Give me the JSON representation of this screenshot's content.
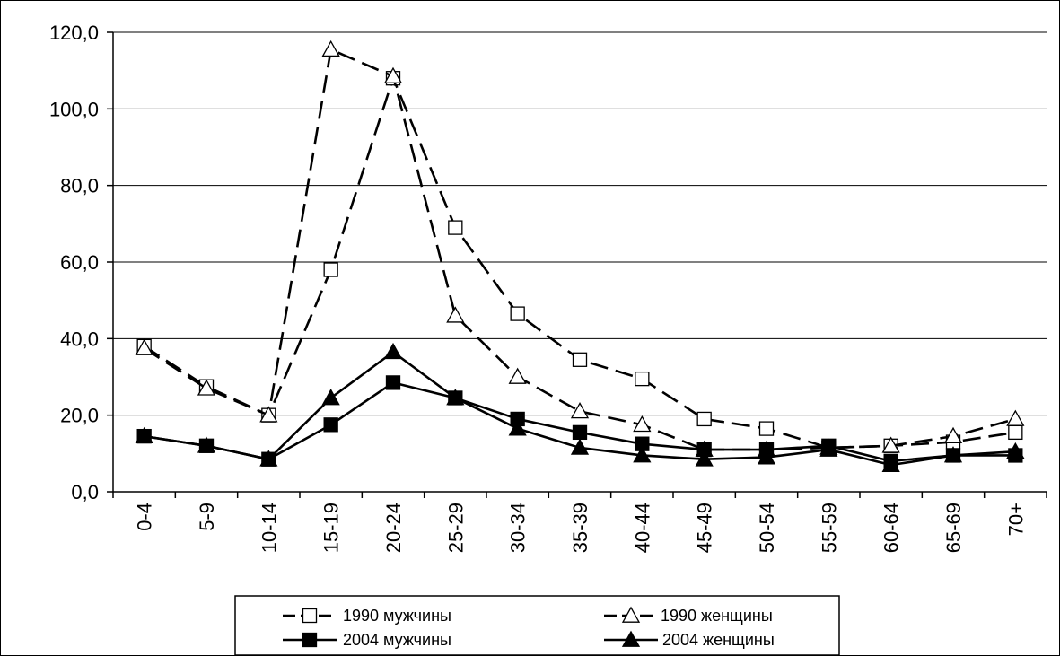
{
  "chart_data": {
    "type": "line",
    "categories": [
      "0-4",
      "5-9",
      "10-14",
      "15-19",
      "20-24",
      "25-29",
      "30-34",
      "35-39",
      "40-44",
      "45-49",
      "50-54",
      "55-59",
      "60-64",
      "65-69",
      "70+"
    ],
    "ylim": [
      0,
      120
    ],
    "yticks": [
      "0,0",
      "20,0",
      "40,0",
      "60,0",
      "80,0",
      "100,0",
      "120,0"
    ],
    "ytick_values": [
      0,
      20,
      40,
      60,
      80,
      100,
      120
    ],
    "grid": true,
    "legend_position": "bottom",
    "series": [
      {
        "name": "1990 мужчины",
        "marker": "square-open",
        "dash": "dashed",
        "values": [
          38.0,
          27.5,
          20.0,
          58.0,
          108.0,
          69.0,
          46.5,
          34.5,
          29.5,
          19.0,
          16.5,
          11.5,
          12.0,
          13.0,
          15.5
        ]
      },
      {
        "name": "1990 женщины",
        "marker": "triangle-open",
        "dash": "dashed",
        "values": [
          37.5,
          27.0,
          20.0,
          115.5,
          108.5,
          46.0,
          30.0,
          21.0,
          17.5,
          11.0,
          11.0,
          11.5,
          12.0,
          14.5,
          19.0
        ]
      },
      {
        "name": "2004 мужчины",
        "marker": "square-filled",
        "dash": "solid",
        "values": [
          14.5,
          12.0,
          8.5,
          17.5,
          28.5,
          24.5,
          19.0,
          15.5,
          12.5,
          11.0,
          11.0,
          12.0,
          8.0,
          9.5,
          9.5
        ]
      },
      {
        "name": "2004 женщины",
        "marker": "triangle-filled",
        "dash": "solid",
        "values": [
          14.5,
          12.0,
          8.5,
          24.5,
          36.5,
          24.5,
          16.5,
          11.5,
          9.5,
          8.5,
          9.0,
          11.0,
          7.0,
          9.5,
          10.5
        ]
      }
    ]
  },
  "legend": {
    "labels": [
      "1990 мужчины",
      "1990 женщины",
      "2004 мужчины",
      "2004 женщины"
    ]
  }
}
